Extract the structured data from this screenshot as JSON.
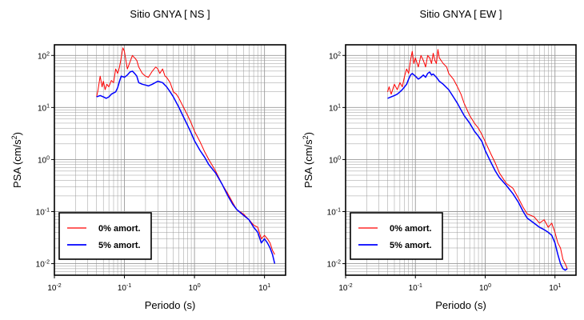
{
  "chart_data": [
    {
      "type": "line",
      "title": "Sitio GNYA [ NS ]",
      "xlabel": "Periodo (s)",
      "ylabel": "PSA (cm/s2)",
      "ylabel_main": "PSA (cm/s",
      "ylabel_sup": "2",
      "ylabel_close": ")",
      "x_scale": "log",
      "y_scale": "log",
      "xlim": [
        0.01,
        20
      ],
      "ylim": [
        0.006,
        160
      ],
      "grid": true,
      "legend_position": "bottom-left",
      "x_ticks": [
        {
          "value": 0.01,
          "base": "10",
          "exp": "-2"
        },
        {
          "value": 0.1,
          "base": "10",
          "exp": "-1"
        },
        {
          "value": 1,
          "base": "10",
          "exp": "0"
        },
        {
          "value": 10,
          "base": "10",
          "exp": "1"
        }
      ],
      "y_ticks": [
        {
          "value": 0.01,
          "base": "10",
          "exp": "-2"
        },
        {
          "value": 0.1,
          "base": "10",
          "exp": "-1"
        },
        {
          "value": 1,
          "base": "10",
          "exp": "0"
        },
        {
          "value": 10,
          "base": "10",
          "exp": "1"
        },
        {
          "value": 100,
          "base": "10",
          "exp": "2"
        }
      ],
      "series": [
        {
          "name": "0% amort.",
          "color": "#ff0000",
          "points": [
            [
              0.04,
              16
            ],
            [
              0.042,
              22
            ],
            [
              0.045,
              40
            ],
            [
              0.048,
              25
            ],
            [
              0.05,
              32
            ],
            [
              0.053,
              22
            ],
            [
              0.056,
              28
            ],
            [
              0.06,
              25
            ],
            [
              0.065,
              33
            ],
            [
              0.07,
              30
            ],
            [
              0.075,
              55
            ],
            [
              0.08,
              45
            ],
            [
              0.085,
              60
            ],
            [
              0.09,
              90
            ],
            [
              0.095,
              140
            ],
            [
              0.1,
              120
            ],
            [
              0.105,
              80
            ],
            [
              0.11,
              55
            ],
            [
              0.12,
              75
            ],
            [
              0.13,
              100
            ],
            [
              0.14,
              90
            ],
            [
              0.15,
              80
            ],
            [
              0.16,
              60
            ],
            [
              0.18,
              45
            ],
            [
              0.2,
              40
            ],
            [
              0.22,
              38
            ],
            [
              0.25,
              50
            ],
            [
              0.28,
              60
            ],
            [
              0.3,
              55
            ],
            [
              0.32,
              45
            ],
            [
              0.35,
              55
            ],
            [
              0.38,
              40
            ],
            [
              0.4,
              38
            ],
            [
              0.45,
              30
            ],
            [
              0.5,
              20
            ],
            [
              0.55,
              18
            ],
            [
              0.6,
              15
            ],
            [
              0.7,
              10
            ],
            [
              0.8,
              7
            ],
            [
              0.9,
              5
            ],
            [
              1.0,
              3.5
            ],
            [
              1.2,
              2.2
            ],
            [
              1.4,
              1.4
            ],
            [
              1.6,
              1.0
            ],
            [
              2.0,
              0.6
            ],
            [
              2.5,
              0.33
            ],
            [
              3.0,
              0.22
            ],
            [
              3.5,
              0.15
            ],
            [
              4.0,
              0.11
            ],
            [
              5.0,
              0.09
            ],
            [
              6.0,
              0.07
            ],
            [
              7.0,
              0.055
            ],
            [
              8.0,
              0.05
            ],
            [
              9.0,
              0.03
            ],
            [
              10.0,
              0.035
            ],
            [
              11.0,
              0.03
            ],
            [
              12.0,
              0.025
            ],
            [
              13.0,
              0.018
            ],
            [
              14.0,
              0.015
            ]
          ]
        },
        {
          "name": "5% amort.",
          "color": "#0000ff",
          "points": [
            [
              0.04,
              16
            ],
            [
              0.045,
              17
            ],
            [
              0.05,
              16
            ],
            [
              0.055,
              15
            ],
            [
              0.06,
              16
            ],
            [
              0.065,
              18
            ],
            [
              0.07,
              19
            ],
            [
              0.075,
              20
            ],
            [
              0.08,
              24
            ],
            [
              0.085,
              32
            ],
            [
              0.09,
              40
            ],
            [
              0.1,
              38
            ],
            [
              0.11,
              42
            ],
            [
              0.12,
              48
            ],
            [
              0.13,
              50
            ],
            [
              0.14,
              45
            ],
            [
              0.15,
              40
            ],
            [
              0.16,
              30
            ],
            [
              0.18,
              28
            ],
            [
              0.2,
              27
            ],
            [
              0.22,
              26
            ],
            [
              0.25,
              28
            ],
            [
              0.3,
              32
            ],
            [
              0.35,
              30
            ],
            [
              0.4,
              25
            ],
            [
              0.45,
              20
            ],
            [
              0.5,
              16
            ],
            [
              0.6,
              10
            ],
            [
              0.7,
              6.5
            ],
            [
              0.8,
              4.5
            ],
            [
              0.9,
              3.2
            ],
            [
              1.0,
              2.3
            ],
            [
              1.2,
              1.5
            ],
            [
              1.4,
              1.1
            ],
            [
              1.6,
              0.8
            ],
            [
              2.0,
              0.55
            ],
            [
              2.5,
              0.33
            ],
            [
              3.0,
              0.2
            ],
            [
              3.5,
              0.14
            ],
            [
              4.0,
              0.11
            ],
            [
              5.0,
              0.085
            ],
            [
              6.0,
              0.07
            ],
            [
              7.0,
              0.05
            ],
            [
              8.0,
              0.04
            ],
            [
              9.0,
              0.025
            ],
            [
              10.0,
              0.03
            ],
            [
              11.0,
              0.025
            ],
            [
              12.0,
              0.02
            ],
            [
              13.0,
              0.015
            ],
            [
              14.0,
              0.01
            ]
          ]
        }
      ]
    },
    {
      "type": "line",
      "title": "Sitio GNYA [ EW ]",
      "xlabel": "Periodo (s)",
      "ylabel": "PSA (cm/s2)",
      "ylabel_main": "PSA (cm/s",
      "ylabel_sup": "2",
      "ylabel_close": ")",
      "x_scale": "log",
      "y_scale": "log",
      "xlim": [
        0.01,
        20
      ],
      "ylim": [
        0.006,
        160
      ],
      "grid": true,
      "legend_position": "bottom-left",
      "x_ticks": [
        {
          "value": 0.01,
          "base": "10",
          "exp": "-2"
        },
        {
          "value": 0.1,
          "base": "10",
          "exp": "-1"
        },
        {
          "value": 1,
          "base": "10",
          "exp": "0"
        },
        {
          "value": 10,
          "base": "10",
          "exp": "1"
        }
      ],
      "y_ticks": [
        {
          "value": 0.01,
          "base": "10",
          "exp": "-2"
        },
        {
          "value": 0.1,
          "base": "10",
          "exp": "-1"
        },
        {
          "value": 1,
          "base": "10",
          "exp": "0"
        },
        {
          "value": 10,
          "base": "10",
          "exp": "1"
        },
        {
          "value": 100,
          "base": "10",
          "exp": "2"
        }
      ],
      "series": [
        {
          "name": "0% amort.",
          "color": "#ff0000",
          "points": [
            [
              0.04,
              20
            ],
            [
              0.042,
              25
            ],
            [
              0.045,
              18
            ],
            [
              0.05,
              28
            ],
            [
              0.055,
              22
            ],
            [
              0.06,
              30
            ],
            [
              0.065,
              25
            ],
            [
              0.07,
              40
            ],
            [
              0.075,
              55
            ],
            [
              0.08,
              45
            ],
            [
              0.085,
              80
            ],
            [
              0.09,
              120
            ],
            [
              0.095,
              70
            ],
            [
              0.1,
              90
            ],
            [
              0.11,
              60
            ],
            [
              0.12,
              100
            ],
            [
              0.13,
              80
            ],
            [
              0.14,
              60
            ],
            [
              0.15,
              100
            ],
            [
              0.16,
              90
            ],
            [
              0.17,
              70
            ],
            [
              0.18,
              110
            ],
            [
              0.19,
              80
            ],
            [
              0.2,
              70
            ],
            [
              0.21,
              130
            ],
            [
              0.22,
              90
            ],
            [
              0.25,
              70
            ],
            [
              0.28,
              60
            ],
            [
              0.3,
              45
            ],
            [
              0.35,
              35
            ],
            [
              0.4,
              25
            ],
            [
              0.45,
              18
            ],
            [
              0.5,
              12
            ],
            [
              0.6,
              7
            ],
            [
              0.7,
              5
            ],
            [
              0.8,
              4
            ],
            [
              0.9,
              3
            ],
            [
              1.0,
              2.2
            ],
            [
              1.2,
              1.3
            ],
            [
              1.4,
              0.85
            ],
            [
              1.6,
              0.55
            ],
            [
              2.0,
              0.35
            ],
            [
              2.5,
              0.28
            ],
            [
              3.0,
              0.18
            ],
            [
              3.5,
              0.12
            ],
            [
              4.0,
              0.09
            ],
            [
              5.0,
              0.08
            ],
            [
              6.0,
              0.06
            ],
            [
              7.0,
              0.07
            ],
            [
              8.0,
              0.05
            ],
            [
              9.0,
              0.06
            ],
            [
              10.0,
              0.04
            ],
            [
              11.0,
              0.025
            ],
            [
              12.0,
              0.02
            ],
            [
              13.0,
              0.012
            ],
            [
              14.0,
              0.01
            ],
            [
              15.0,
              0.008
            ]
          ]
        },
        {
          "name": "5% amort.",
          "color": "#0000ff",
          "points": [
            [
              0.04,
              15
            ],
            [
              0.045,
              16
            ],
            [
              0.05,
              17
            ],
            [
              0.055,
              18
            ],
            [
              0.06,
              20
            ],
            [
              0.065,
              22
            ],
            [
              0.07,
              25
            ],
            [
              0.075,
              28
            ],
            [
              0.08,
              35
            ],
            [
              0.085,
              42
            ],
            [
              0.09,
              45
            ],
            [
              0.1,
              40
            ],
            [
              0.11,
              35
            ],
            [
              0.12,
              38
            ],
            [
              0.13,
              42
            ],
            [
              0.14,
              38
            ],
            [
              0.15,
              45
            ],
            [
              0.16,
              48
            ],
            [
              0.17,
              42
            ],
            [
              0.18,
              44
            ],
            [
              0.2,
              38
            ],
            [
              0.22,
              32
            ],
            [
              0.25,
              28
            ],
            [
              0.3,
              22
            ],
            [
              0.35,
              16
            ],
            [
              0.4,
              12
            ],
            [
              0.45,
              9
            ],
            [
              0.5,
              7
            ],
            [
              0.6,
              5
            ],
            [
              0.7,
              3.5
            ],
            [
              0.8,
              2.8
            ],
            [
              0.9,
              2.2
            ],
            [
              1.0,
              1.5
            ],
            [
              1.2,
              0.9
            ],
            [
              1.4,
              0.6
            ],
            [
              1.6,
              0.45
            ],
            [
              2.0,
              0.32
            ],
            [
              2.5,
              0.22
            ],
            [
              3.0,
              0.15
            ],
            [
              3.5,
              0.1
            ],
            [
              4.0,
              0.075
            ],
            [
              5.0,
              0.06
            ],
            [
              6.0,
              0.05
            ],
            [
              7.0,
              0.045
            ],
            [
              8.0,
              0.04
            ],
            [
              9.0,
              0.035
            ],
            [
              10.0,
              0.025
            ],
            [
              11.0,
              0.015
            ],
            [
              12.0,
              0.01
            ],
            [
              13.0,
              0.008
            ],
            [
              14.0,
              0.0075
            ],
            [
              15.0,
              0.008
            ]
          ]
        }
      ]
    }
  ]
}
